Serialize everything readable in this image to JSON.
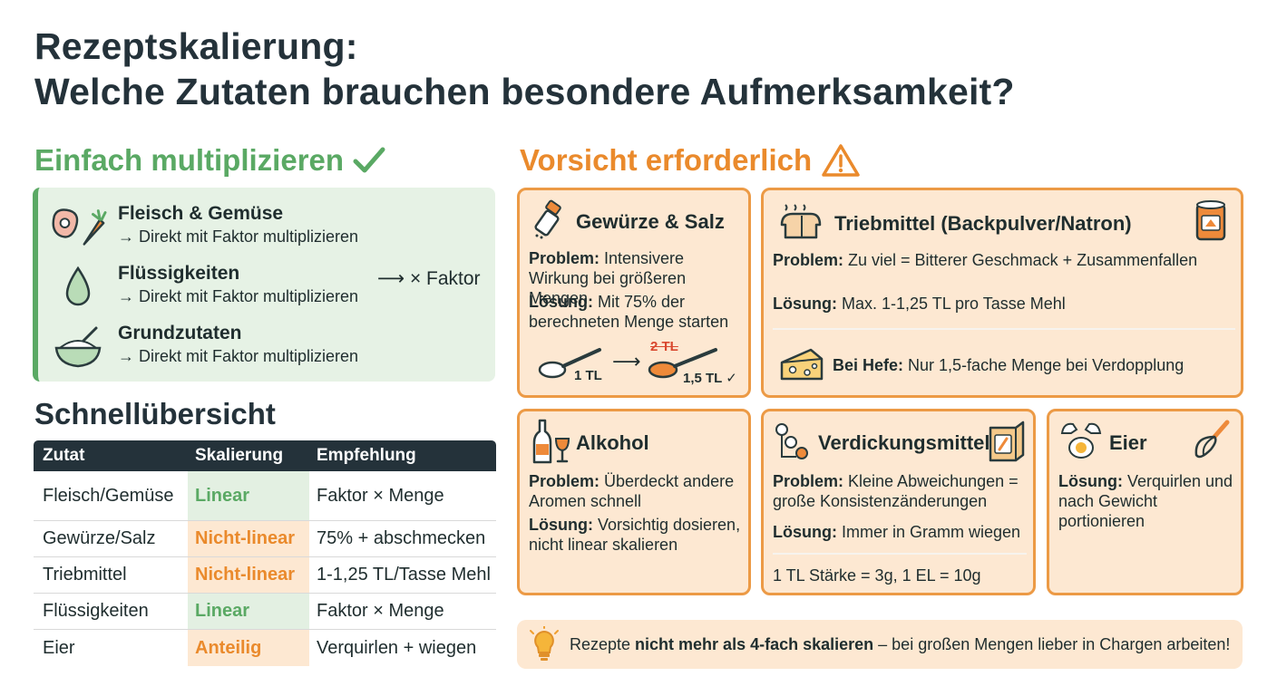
{
  "title_line1": "Rezeptskalierung:",
  "title_line2": "Welche Zutaten brauchen besondere Aufmerksamkeit?",
  "simple": {
    "heading": "Einfach multiplizieren",
    "items": [
      {
        "title": "Fleisch & Gemüse",
        "sub": "→ Direkt mit Faktor multiplizieren"
      },
      {
        "title": "Flüssigkeiten",
        "sub": "→ Direkt mit Faktor multiplizieren"
      },
      {
        "title": "Grundzutaten",
        "sub": "→ Direkt mit Faktor multiplizieren"
      }
    ],
    "factor_label": "⟶ × Faktor"
  },
  "overview": {
    "heading": "Schnellübersicht",
    "columns": [
      "Zutat",
      "Skalierung",
      "Empfehlung"
    ],
    "rows": [
      {
        "zutat": "Fleisch/Gemüse",
        "skalierung": "Linear",
        "empfehlung": "Faktor × Menge"
      },
      {
        "zutat": "Gewürze/Salz",
        "skalierung": "Nicht-linear",
        "empfehlung": "75% + abschmecken"
      },
      {
        "zutat": "Triebmittel",
        "skalierung": "Nicht-linear",
        "empfehlung": "1-1,25 TL/Tasse Mehl"
      },
      {
        "zutat": "Flüssigkeiten",
        "skalierung": "Linear",
        "empfehlung": "Faktor × Menge"
      },
      {
        "zutat": "Eier",
        "skalierung": "Anteilig",
        "empfehlung": "Verquirlen + wiegen"
      }
    ]
  },
  "caution": {
    "heading": "Vorsicht erforderlich",
    "gewuerze": {
      "title": "Gewürze & Salz",
      "problem_label": "Problem:",
      "problem": " Intensivere Wirkung bei größeren Mengen",
      "loesung_label": "Lösung:",
      "loesung": " Mit 75% der berechneten Menge starten",
      "spoon1": "1 TL",
      "strike": "2 TL",
      "spoon2": "1,5 TL ✓"
    },
    "triebmittel": {
      "title": "Triebmittel (Backpulver/Natron)",
      "problem_label": "Problem:",
      "problem": " Zu viel = Bitterer Geschmack + Zusammenfallen",
      "loesung_label": "Lösung:",
      "loesung": " Max. 1-1,25 TL pro Tasse Mehl",
      "hefe_label": "Bei Hefe:",
      "hefe": " Nur 1,5-fache Menge bei Verdopplung"
    },
    "alkohol": {
      "title": "Alkohol",
      "problem_label": "Problem:",
      "problem": " Überdeckt andere Aromen schnell",
      "loesung_label": "Lösung:",
      "loesung": " Vorsichtig dosieren, nicht linear skalieren"
    },
    "verdickung": {
      "title": "Verdickungsmittel",
      "problem_label": "Problem:",
      "problem": " Kleine Abweichungen = große Konsistenzänderungen",
      "loesung_label": "Lösung:",
      "loesung": " Immer in Gramm wiegen",
      "note": "1 TL Stärke = 3g, 1 EL = 10g"
    },
    "eier": {
      "title": "Eier",
      "loesung_label": "Lösung:",
      "loesung": " Verquirlen und nach Gewicht portionieren"
    }
  },
  "tip": {
    "pre": "Rezepte ",
    "bold": "nicht mehr als 4-fach skalieren",
    "post": " – bei großen Mengen lieber in Chargen arbeiten!"
  },
  "colors": {
    "green": "#5aa964",
    "orange": "#ea8a2c",
    "dark": "#24323a",
    "card_bg": "#fde8d2",
    "card_border": "#ec9a45"
  }
}
